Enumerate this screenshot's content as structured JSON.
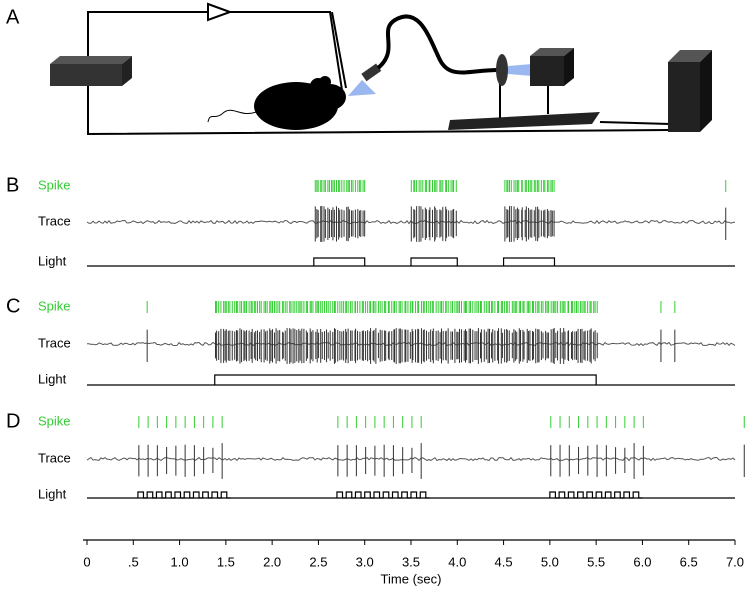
{
  "panels": [
    {
      "label": "A"
    },
    {
      "label": "B",
      "rows": [
        "Spike",
        "Trace",
        "Light"
      ],
      "bursts": [
        [
          2.45,
          3.0
        ],
        [
          3.5,
          4.0
        ],
        [
          4.5,
          5.05
        ]
      ],
      "isolated_spikes": [
        6.9
      ],
      "light": [
        [
          2.45,
          3.0
        ],
        [
          3.5,
          4.0
        ],
        [
          4.5,
          5.05
        ]
      ]
    },
    {
      "label": "C",
      "rows": [
        "Spike",
        "Trace",
        "Light"
      ],
      "bursts": [
        [
          1.38,
          5.5
        ]
      ],
      "isolated_spikes": [
        0.65,
        6.2,
        6.35
      ],
      "light": [
        [
          1.38,
          5.5
        ]
      ]
    },
    {
      "label": "D",
      "rows": [
        "Spike",
        "Trace",
        "Light"
      ],
      "bursts": [
        [
          0.55,
          1.55
        ],
        [
          2.7,
          3.7
        ],
        [
          5.0,
          6.0
        ]
      ],
      "isolated_spikes": [
        7.1
      ],
      "light": [
        [
          0.55,
          1.55
        ],
        [
          2.7,
          3.7
        ],
        [
          5.0,
          6.0
        ]
      ],
      "pulse_period": 0.1
    }
  ],
  "time_axis": {
    "label": "Time (sec)",
    "xlim": [
      0,
      7.0
    ],
    "ticks": [
      0,
      {
        "value": 0.5,
        "label": ".5"
      },
      {
        "value": 1,
        "label": "1.0"
      },
      1.5,
      {
        "value": 2,
        "label": "2.0"
      },
      2.5,
      {
        "value": 3,
        "label": "3.0"
      },
      3.5,
      {
        "value": 4,
        "label": "4.0"
      },
      4.5,
      {
        "value": 5,
        "label": "5.0"
      },
      5.5,
      {
        "value": 6,
        "label": "6.0"
      },
      6.5,
      {
        "value": 7,
        "label": "7.0"
      }
    ]
  }
}
